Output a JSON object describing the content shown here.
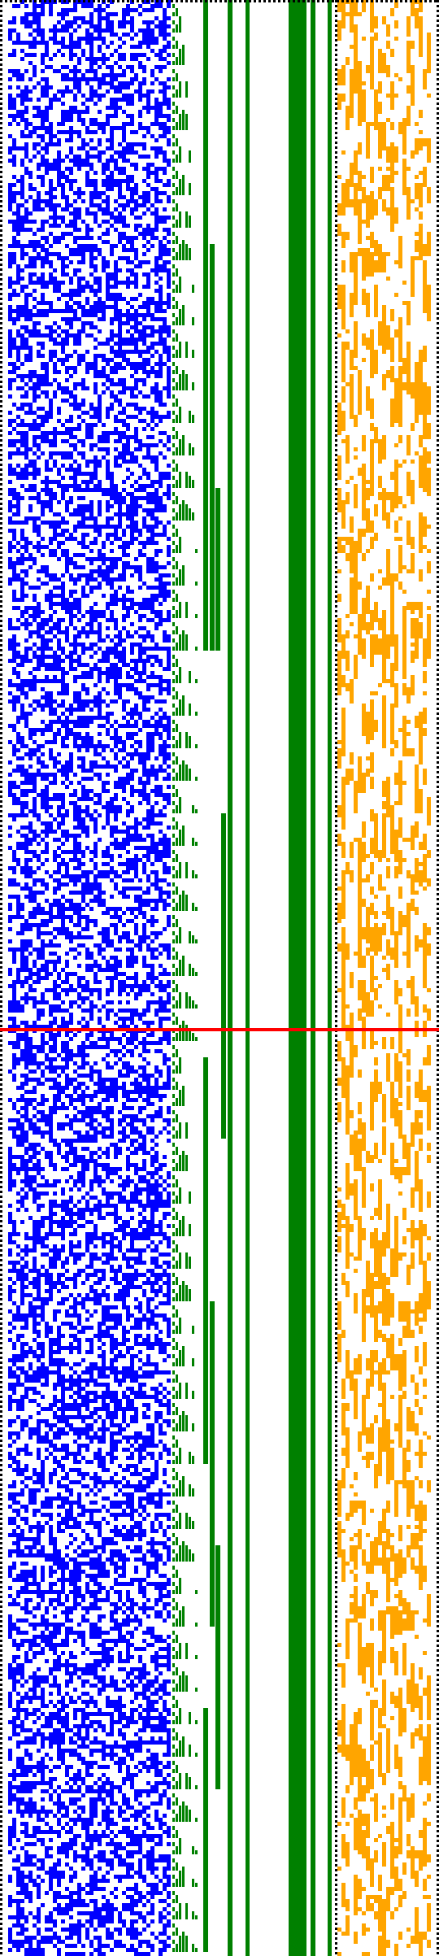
{
  "figure": {
    "type": "binary-pixel-visualization",
    "colors": {
      "background": "#ffffff",
      "dotted_border": "#000000",
      "left_noise": "#0000ff",
      "staircase_and_bars": "#008000",
      "right_noise": "#ffa500",
      "divider_line": "#ff0000"
    },
    "panels": [
      {
        "name": "left-noise-panel",
        "color_key": "left_noise",
        "fill_density": 0.5
      },
      {
        "name": "staircase-panel",
        "color_key": "staircase_and_bars"
      },
      {
        "name": "vertical-bars-panel",
        "color_key": "staircase_and_bars"
      },
      {
        "name": "right-noise-panel",
        "color_key": "right_noise",
        "fill_density": 0.4
      }
    ],
    "divider": {
      "name": "horizontal-divider",
      "color_key": "divider_line",
      "row_fraction": 0.5
    }
  }
}
